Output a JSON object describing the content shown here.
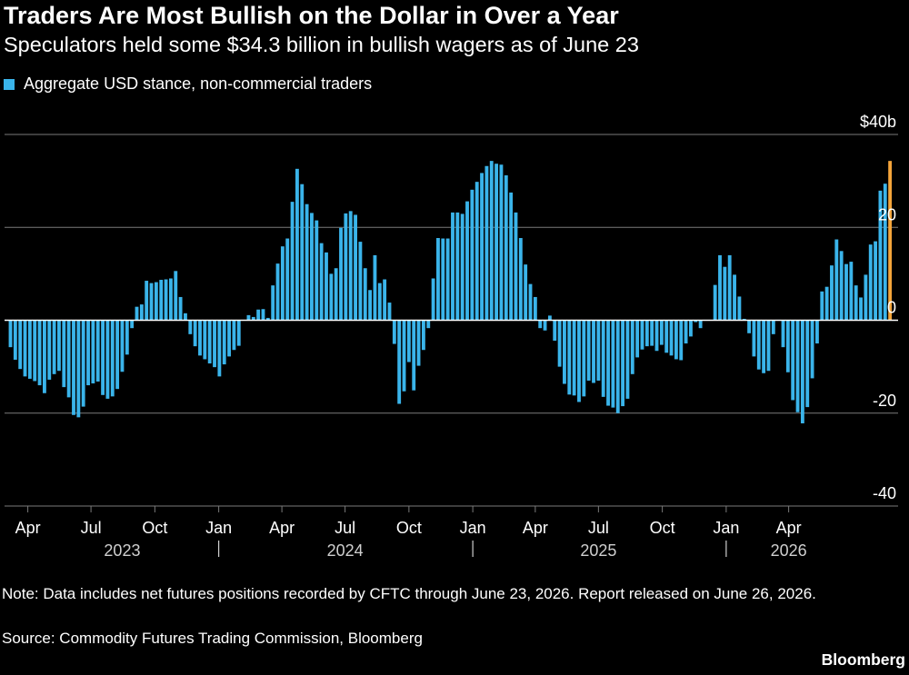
{
  "chart_data": {
    "type": "bar",
    "title": "Traders Are Most Bullish on the Dollar in Over a Year",
    "subtitle": "Speculators held some $34.3 billion in bullish wagers as of June 23",
    "legend": [
      "Aggregate USD stance, non-commercial traders"
    ],
    "y_ticks": [
      "$40b",
      "20",
      "0",
      "-20",
      "-40"
    ],
    "ylim": [
      -40,
      40
    ],
    "x_month_ticks": [
      "Apr",
      "Jul",
      "Oct",
      "Jan",
      "Apr",
      "Jul",
      "Oct",
      "Jan",
      "Apr",
      "Jul",
      "Oct",
      "Jan",
      "Apr"
    ],
    "x_year_labels": [
      "2023",
      "2024",
      "2025",
      "2026"
    ],
    "start_week": "2023-03-07",
    "end_week": "2026-06-23",
    "series": [
      {
        "values": [
          -5.8,
          -8.5,
          -10.5,
          -12.1,
          -12.6,
          -13.1,
          -14.0,
          -15.7,
          -12.8,
          -11.6,
          -10.9,
          -14.4,
          -16.6,
          -20.4,
          -20.9,
          -18.6,
          -14.0,
          -13.6,
          -13.2,
          -16.1,
          -16.9,
          -16.4,
          -14.8,
          -11.1,
          -7.4,
          -1.7,
          2.9,
          3.4,
          8.5,
          8.0,
          8.2,
          8.7,
          8.8,
          9.0,
          10.6,
          5.0,
          1.5,
          -3.0,
          -5.6,
          -7.6,
          -8.4,
          -9.3,
          -10.1,
          -12.1,
          -9.5,
          -7.8,
          -6.4,
          -5.5,
          0.1,
          1.1,
          0.7,
          2.3,
          2.4,
          0.5,
          7.5,
          12.2,
          15.9,
          17.6,
          25.5,
          32.6,
          29.3,
          25.0,
          23.1,
          21.5,
          16.6,
          14.6,
          10.0,
          11.2,
          19.9,
          23.0,
          23.5,
          22.7,
          16.9,
          11.2,
          6.5,
          14.0,
          8.0,
          8.8,
          3.8,
          -5.1,
          -18.0,
          -15.3,
          -9.0,
          -15.1,
          -9.8,
          -6.4,
          -1.7,
          9.0,
          17.7,
          17.6,
          17.6,
          23.2,
          23.2,
          22.9,
          25.6,
          28.1,
          29.8,
          31.7,
          33.2,
          34.3,
          33.7,
          33.5,
          31.2,
          27.5,
          23.2,
          17.7,
          12.0,
          7.8,
          5.0,
          -1.7,
          -2.2,
          1.0,
          -4.4,
          -10.0,
          -13.7,
          -16.0,
          -16.2,
          -17.6,
          -16.4,
          -13.0,
          -13.5,
          -13.0,
          -16.5,
          -18.4,
          -18.8,
          -20.0,
          -18.5,
          -16.9,
          -11.6,
          -8.0,
          -6.3,
          -5.6,
          -5.5,
          -6.6,
          -5.3,
          -7.0,
          -7.6,
          -8.4,
          -8.6,
          -5.0,
          -3.5,
          -0.4,
          -1.7,
          0,
          0,
          7.6,
          14.0,
          11.5,
          14.0,
          9.8,
          5.1,
          0.3,
          -2.8,
          -7.8,
          -10.6,
          -11.4,
          -10.9,
          -3.0,
          0,
          -5.8,
          -11.2,
          -17.2,
          -19.8,
          -22.2,
          -18.7,
          -12.5,
          -5.0,
          6.2,
          7.2,
          11.8,
          17.4,
          14.9,
          12.1,
          12.6,
          7.5,
          4.9,
          9.8,
          16.3,
          17.0,
          27.9,
          29.4,
          34.3
        ]
      }
    ],
    "highlight_last": true,
    "colors": {
      "bar": "#3ab4ea",
      "highlight": "#f5a53a",
      "zero_line": "#ffffff",
      "grid": "#7a7a7a",
      "background": "#000000"
    }
  },
  "footer": {
    "note": "Note: Data includes net futures positions recorded by CFTC through June 23, 2026. Report released on June 26, 2026.",
    "source": "Source: Commodity Futures Trading Commission, Bloomberg",
    "brand": "Bloomberg"
  }
}
